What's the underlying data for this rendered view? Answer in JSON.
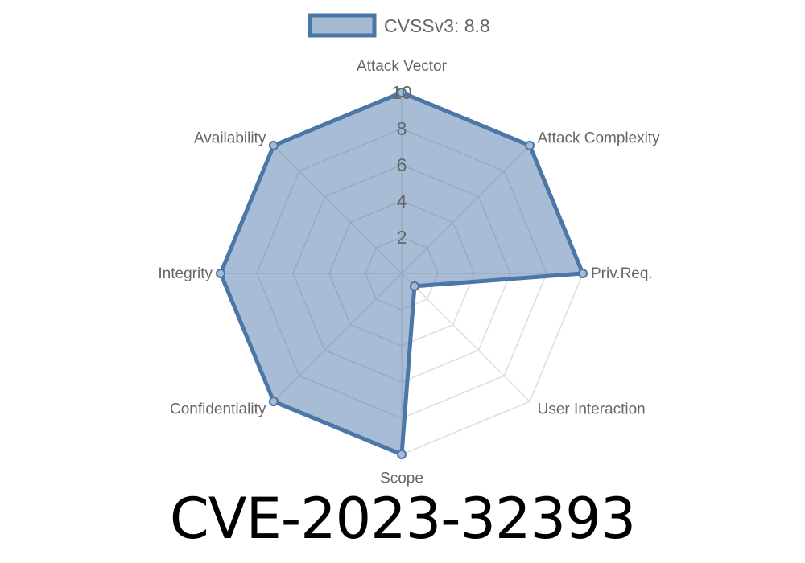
{
  "title": "CVE-2023-32393",
  "chart_data": {
    "type": "radar",
    "legend": {
      "label": "CVSSv3: 8.8",
      "placement": "top"
    },
    "axes": [
      "Attack Vector",
      "Attack Complexity",
      "Priv.Req.",
      "User Interaction",
      "Scope",
      "Confidentiality",
      "Integrity",
      "Availability"
    ],
    "series": [
      {
        "name": "CVSSv3: 8.8",
        "values": [
          10,
          10,
          10,
          1,
          10,
          10,
          10,
          10
        ]
      }
    ],
    "rlim": [
      0,
      10
    ],
    "ticks": [
      "2",
      "4",
      "6",
      "8",
      "10"
    ],
    "grid": true,
    "colors": {
      "stroke": "#4a76a8",
      "fill": "#a6bad3",
      "grid": "#dddddd",
      "text": "#666666"
    }
  }
}
